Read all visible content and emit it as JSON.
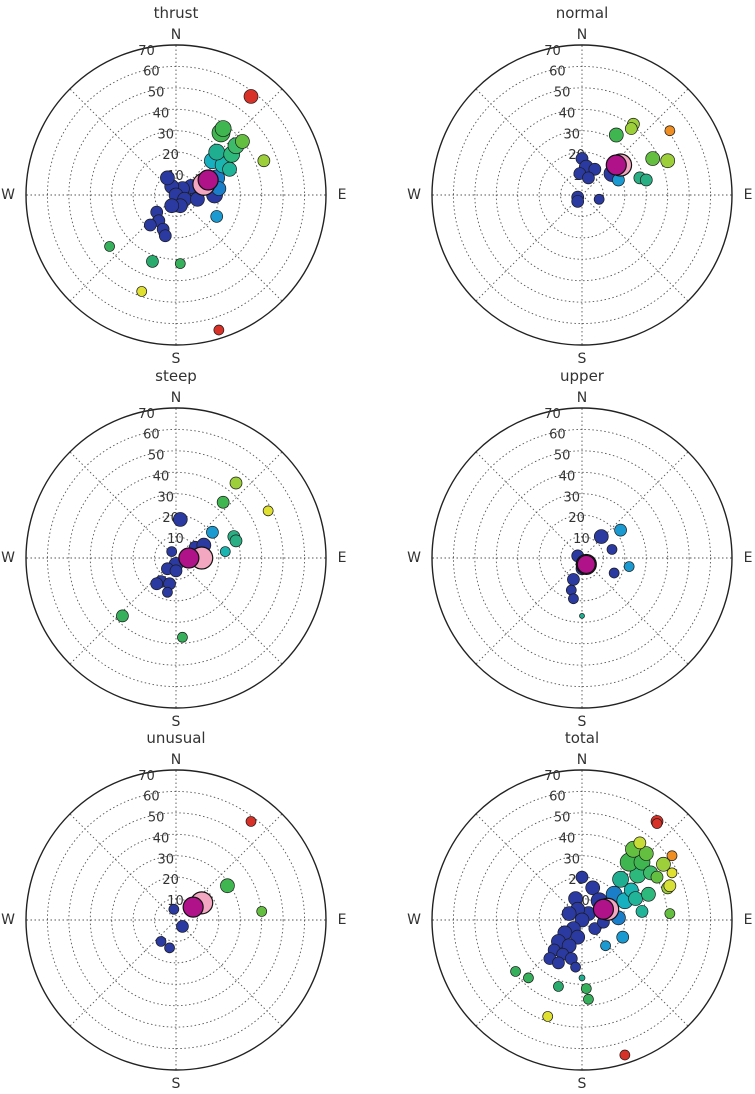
{
  "chart_data": [
    {
      "type": "scatter",
      "projection": "polar",
      "title": "thrust",
      "compass": {
        "N": "N",
        "E": "E",
        "S": "S",
        "W": "W"
      },
      "rlim": [
        0,
        70
      ],
      "rticks": [
        "10",
        "20",
        "30",
        "40",
        "50",
        "60",
        "70"
      ],
      "grid": true,
      "points": [
        {
          "x": 14,
          "y": 6,
          "c": "#2b3aa0",
          "s": 9
        },
        {
          "x": 10,
          "y": 2,
          "c": "#2b3aa0",
          "s": 8
        },
        {
          "x": 7,
          "y": 4,
          "c": "#2b3aa0",
          "s": 7
        },
        {
          "x": 3,
          "y": 3,
          "c": "#2b3aa0",
          "s": 7
        },
        {
          "x": -2,
          "y": 4,
          "c": "#2b3aa0",
          "s": 7
        },
        {
          "x": -4,
          "y": 8,
          "c": "#2b3aa0",
          "s": 7
        },
        {
          "x": 0,
          "y": 0,
          "c": "#2b3aa0",
          "s": 7
        },
        {
          "x": 4,
          "y": -2,
          "c": "#2b3aa0",
          "s": 7
        },
        {
          "x": 10,
          "y": -2,
          "c": "#2b3aa0",
          "s": 7
        },
        {
          "x": 18,
          "y": 0,
          "c": "#2b3aa0",
          "s": 8
        },
        {
          "x": 2,
          "y": -5,
          "c": "#2b3aa0",
          "s": 7
        },
        {
          "x": -2,
          "y": -5,
          "c": "#2b3aa0",
          "s": 7
        },
        {
          "x": -9,
          "y": -8,
          "c": "#2b3aa0",
          "s": 6
        },
        {
          "x": -8,
          "y": -12,
          "c": "#2b3aa0",
          "s": 6
        },
        {
          "x": -12,
          "y": -14,
          "c": "#2b3aa0",
          "s": 6
        },
        {
          "x": -6,
          "y": -16,
          "c": "#2b3aa0",
          "s": 6
        },
        {
          "x": -5,
          "y": -19,
          "c": "#2b3aa0",
          "s": 6
        },
        {
          "x": 19,
          "y": 8,
          "c": "#1a7ec8",
          "s": 8
        },
        {
          "x": 20,
          "y": 3,
          "c": "#1a7ec8",
          "s": 7
        },
        {
          "x": 19,
          "y": -10,
          "c": "#1a9ad0",
          "s": 6
        },
        {
          "x": 17,
          "y": 16,
          "c": "#17b0c0",
          "s": 8
        },
        {
          "x": 22,
          "y": 14,
          "c": "#1ab5b0",
          "s": 8
        },
        {
          "x": 25,
          "y": 12,
          "c": "#22b498",
          "s": 7
        },
        {
          "x": 19,
          "y": 20,
          "c": "#1fae90",
          "s": 8
        },
        {
          "x": 26,
          "y": 19,
          "c": "#2db87c",
          "s": 8
        },
        {
          "x": 28,
          "y": 23,
          "c": "#3ebb6a",
          "s": 8
        },
        {
          "x": 21,
          "y": 29,
          "c": "#3fb650",
          "s": 9
        },
        {
          "x": 22,
          "y": 31,
          "c": "#3fb650",
          "s": 8
        },
        {
          "x": 31,
          "y": 25,
          "c": "#64bf40",
          "s": 7
        },
        {
          "x": 41,
          "y": 16,
          "c": "#9ccf3a",
          "s": 6
        },
        {
          "x": 35,
          "y": 46,
          "c": "#d83228",
          "s": 7
        },
        {
          "x": -31,
          "y": -24,
          "c": "#37b05c",
          "s": 5
        },
        {
          "x": -11,
          "y": -31,
          "c": "#2aab6e",
          "s": 6
        },
        {
          "x": 2,
          "y": -32,
          "c": "#37b05c",
          "s": 5
        },
        {
          "x": -16,
          "y": -45,
          "c": "#e0e030",
          "s": 5
        },
        {
          "x": 20,
          "y": -63,
          "c": "#d83228",
          "s": 5
        }
      ],
      "means": [
        {
          "x": 13,
          "y": 5,
          "c": "#f4a7c0",
          "s": 11
        },
        {
          "x": 15,
          "y": 7,
          "c": "#b0128a",
          "s": 10
        }
      ]
    },
    {
      "type": "scatter",
      "projection": "polar",
      "title": "normal",
      "compass": {
        "N": "N",
        "E": "E",
        "S": "S",
        "W": "W"
      },
      "rlim": [
        0,
        70
      ],
      "rticks": [
        "10",
        "20",
        "30",
        "40",
        "50",
        "60",
        "70"
      ],
      "grid": true,
      "points": [
        {
          "x": 0,
          "y": 17,
          "c": "#2b3aa0",
          "s": 6
        },
        {
          "x": 2,
          "y": 13,
          "c": "#2b3aa0",
          "s": 7
        },
        {
          "x": 6,
          "y": 12,
          "c": "#2b3aa0",
          "s": 6
        },
        {
          "x": -1,
          "y": 10,
          "c": "#2b3aa0",
          "s": 6
        },
        {
          "x": 3,
          "y": 8,
          "c": "#2b3aa0",
          "s": 6
        },
        {
          "x": 14,
          "y": 10,
          "c": "#2b3aa0",
          "s": 8
        },
        {
          "x": 15,
          "y": 14,
          "c": "#1a9ad0",
          "s": 7
        },
        {
          "x": 17,
          "y": 7,
          "c": "#1a9ad0",
          "s": 6
        },
        {
          "x": -2,
          "y": -1,
          "c": "#2b3aa0",
          "s": 6
        },
        {
          "x": -2,
          "y": -3,
          "c": "#2b3aa0",
          "s": 6
        },
        {
          "x": 8,
          "y": -2,
          "c": "#2b3aa0",
          "s": 5
        },
        {
          "x": 27,
          "y": 8,
          "c": "#2aae84",
          "s": 6
        },
        {
          "x": 30,
          "y": 7,
          "c": "#2aae84",
          "s": 6
        },
        {
          "x": 16,
          "y": 28,
          "c": "#3fb650",
          "s": 7
        },
        {
          "x": 33,
          "y": 17,
          "c": "#64bf40",
          "s": 7
        },
        {
          "x": 40,
          "y": 16,
          "c": "#9ccf3a",
          "s": 7
        },
        {
          "x": 24,
          "y": 33,
          "c": "#9ccf3a",
          "s": 6
        },
        {
          "x": 23,
          "y": 31,
          "c": "#9ccf3a",
          "s": 6
        },
        {
          "x": 41,
          "y": 30,
          "c": "#ef8e22",
          "s": 5
        }
      ],
      "means": [
        {
          "x": 18,
          "y": 14,
          "c": "#f4a7c0",
          "s": 11
        },
        {
          "x": 16,
          "y": 14,
          "c": "#b0128a",
          "s": 10
        }
      ]
    },
    {
      "type": "scatter",
      "projection": "polar",
      "title": "steep",
      "compass": {
        "N": "N",
        "E": "E",
        "S": "S",
        "W": "W"
      },
      "rlim": [
        0,
        70
      ],
      "rticks": [
        "10",
        "20",
        "30",
        "40",
        "50",
        "60",
        "70"
      ],
      "grid": true,
      "points": [
        {
          "x": 2,
          "y": 18,
          "c": "#2b3aa0",
          "s": 7
        },
        {
          "x": -2,
          "y": 3,
          "c": "#2b3aa0",
          "s": 5
        },
        {
          "x": 9,
          "y": 5,
          "c": "#2b3aa0",
          "s": 6
        },
        {
          "x": 13,
          "y": 6,
          "c": "#2b3aa0",
          "s": 7
        },
        {
          "x": 0,
          "y": -3,
          "c": "#2b3aa0",
          "s": 7
        },
        {
          "x": -4,
          "y": -5,
          "c": "#2b3aa0",
          "s": 6
        },
        {
          "x": 0,
          "y": -6,
          "c": "#2b3aa0",
          "s": 6
        },
        {
          "x": -7,
          "y": -11,
          "c": "#2b3aa0",
          "s": 6
        },
        {
          "x": -9,
          "y": -12,
          "c": "#2b3aa0",
          "s": 6
        },
        {
          "x": -3,
          "y": -12,
          "c": "#2b3aa0",
          "s": 6
        },
        {
          "x": -4,
          "y": -16,
          "c": "#2b3aa0",
          "s": 5
        },
        {
          "x": 17,
          "y": 12,
          "c": "#1a9ad0",
          "s": 6
        },
        {
          "x": 23,
          "y": 3,
          "c": "#1ab5b0",
          "s": 5
        },
        {
          "x": 27,
          "y": 10,
          "c": "#2aae84",
          "s": 6
        },
        {
          "x": 28,
          "y": 8,
          "c": "#2aae84",
          "s": 6
        },
        {
          "x": 22,
          "y": 26,
          "c": "#3fb650",
          "s": 6
        },
        {
          "x": 28,
          "y": 35,
          "c": "#9ccf3a",
          "s": 6
        },
        {
          "x": 43,
          "y": 22,
          "c": "#e0e030",
          "s": 5
        },
        {
          "x": -25,
          "y": -27,
          "c": "#37b05c",
          "s": 6
        },
        {
          "x": 3,
          "y": -37,
          "c": "#37b05c",
          "s": 5
        }
      ],
      "means": [
        {
          "x": 12,
          "y": 0,
          "c": "#f4a7c0",
          "s": 11
        },
        {
          "x": 6,
          "y": 0,
          "c": "#b0128a",
          "s": 10
        }
      ]
    },
    {
      "type": "scatter",
      "projection": "polar",
      "title": "upper",
      "compass": {
        "N": "N",
        "E": "E",
        "S": "S",
        "W": "W"
      },
      "rlim": [
        0,
        70
      ],
      "rticks": [
        "10",
        "20",
        "30",
        "40",
        "50",
        "60",
        "70"
      ],
      "grid": true,
      "points": [
        {
          "x": 9,
          "y": 10,
          "c": "#2b3aa0",
          "s": 7
        },
        {
          "x": 14,
          "y": 4,
          "c": "#2b3aa0",
          "s": 5
        },
        {
          "x": -2,
          "y": 1,
          "c": "#2b3aa0",
          "s": 6
        },
        {
          "x": 0,
          "y": -5,
          "c": "#2b3aa0",
          "s": 6
        },
        {
          "x": -4,
          "y": -10,
          "c": "#2b3aa0",
          "s": 6
        },
        {
          "x": 15,
          "y": -7,
          "c": "#2b3aa0",
          "s": 5
        },
        {
          "x": -5,
          "y": -15,
          "c": "#2b3aa0",
          "s": 5
        },
        {
          "x": -4,
          "y": -19,
          "c": "#2b3aa0",
          "s": 5
        },
        {
          "x": 18,
          "y": 13,
          "c": "#1a9ad0",
          "s": 6
        },
        {
          "x": 22,
          "y": -4,
          "c": "#1a9ad0",
          "s": 5
        },
        {
          "x": 0,
          "y": -27,
          "c": "#1fae90",
          "s": 2.5
        }
      ],
      "means": [
        {
          "x": 2,
          "y": -3,
          "c": "#f4a7c0",
          "s": 10
        },
        {
          "x": 2,
          "y": -3,
          "c": "#b0128a",
          "s": 9
        }
      ]
    },
    {
      "type": "scatter",
      "projection": "polar",
      "title": "unusual",
      "compass": {
        "N": "N",
        "E": "E",
        "S": "S",
        "W": "W"
      },
      "rlim": [
        0,
        70
      ],
      "rticks": [
        "10",
        "20",
        "30",
        "40",
        "50",
        "60",
        "70"
      ],
      "grid": true,
      "points": [
        {
          "x": -1,
          "y": 5,
          "c": "#2b3aa0",
          "s": 5
        },
        {
          "x": 3,
          "y": -3,
          "c": "#2b3aa0",
          "s": 6
        },
        {
          "x": -7,
          "y": -10,
          "c": "#2b3aa0",
          "s": 5
        },
        {
          "x": -3,
          "y": -13,
          "c": "#2b3aa0",
          "s": 5
        },
        {
          "x": 24,
          "y": 16,
          "c": "#3fb650",
          "s": 7
        },
        {
          "x": 40,
          "y": 4,
          "c": "#64bf40",
          "s": 5
        },
        {
          "x": 35,
          "y": 46,
          "c": "#d83228",
          "s": 5
        }
      ],
      "means": [
        {
          "x": 12,
          "y": 8,
          "c": "#f4a7c0",
          "s": 11
        },
        {
          "x": 8,
          "y": 6,
          "c": "#b0128a",
          "s": 10
        }
      ]
    },
    {
      "type": "scatter",
      "projection": "polar",
      "title": "total",
      "compass": {
        "N": "N",
        "E": "E",
        "S": "S",
        "W": "W"
      },
      "rlim": [
        0,
        70
      ],
      "rticks": [
        "10",
        "20",
        "30",
        "40",
        "50",
        "60",
        "70"
      ],
      "grid": true,
      "points": [
        {
          "x": 0,
          "y": 20,
          "c": "#2b3aa0",
          "s": 6
        },
        {
          "x": 5,
          "y": 15,
          "c": "#2b3aa0",
          "s": 7
        },
        {
          "x": -3,
          "y": 10,
          "c": "#2b3aa0",
          "s": 7
        },
        {
          "x": 8,
          "y": 9,
          "c": "#2b3aa0",
          "s": 8
        },
        {
          "x": 13,
          "y": 6,
          "c": "#2b3aa0",
          "s": 8
        },
        {
          "x": 3,
          "y": 3,
          "c": "#2b3aa0",
          "s": 7
        },
        {
          "x": -2,
          "y": 5,
          "c": "#2b3aa0",
          "s": 7
        },
        {
          "x": -6,
          "y": 3,
          "c": "#2b3aa0",
          "s": 7
        },
        {
          "x": 0,
          "y": 0,
          "c": "#2b3aa0",
          "s": 7
        },
        {
          "x": -4,
          "y": -4,
          "c": "#2b3aa0",
          "s": 7
        },
        {
          "x": -8,
          "y": -6,
          "c": "#2b3aa0",
          "s": 7
        },
        {
          "x": -2,
          "y": -8,
          "c": "#2b3aa0",
          "s": 7
        },
        {
          "x": -11,
          "y": -10,
          "c": "#2b3aa0",
          "s": 7
        },
        {
          "x": -6,
          "y": -12,
          "c": "#2b3aa0",
          "s": 7
        },
        {
          "x": -13,
          "y": -14,
          "c": "#2b3aa0",
          "s": 6
        },
        {
          "x": -9,
          "y": -16,
          "c": "#2b3aa0",
          "s": 6
        },
        {
          "x": -15,
          "y": -18,
          "c": "#2b3aa0",
          "s": 6
        },
        {
          "x": -5,
          "y": -18,
          "c": "#2b3aa0",
          "s": 6
        },
        {
          "x": -11,
          "y": -20,
          "c": "#2b3aa0",
          "s": 6
        },
        {
          "x": -3,
          "y": -22,
          "c": "#2b3aa0",
          "s": 5
        },
        {
          "x": 6,
          "y": -4,
          "c": "#2b3aa0",
          "s": 6
        },
        {
          "x": 10,
          "y": -1,
          "c": "#2b3aa0",
          "s": 6
        },
        {
          "x": 17,
          "y": 1,
          "c": "#1a7ec8",
          "s": 7
        },
        {
          "x": 15,
          "y": 12,
          "c": "#1a7ec8",
          "s": 8
        },
        {
          "x": 19,
          "y": -8,
          "c": "#1a9ad0",
          "s": 6
        },
        {
          "x": 11,
          "y": -12,
          "c": "#1a9ad0",
          "s": 5
        },
        {
          "x": 20,
          "y": 9,
          "c": "#17b0c0",
          "s": 8
        },
        {
          "x": 23,
          "y": 14,
          "c": "#1ab5b0",
          "s": 7
        },
        {
          "x": 18,
          "y": 19,
          "c": "#1fae90",
          "s": 8
        },
        {
          "x": 25,
          "y": 10,
          "c": "#22b498",
          "s": 7
        },
        {
          "x": 28,
          "y": 4,
          "c": "#22b498",
          "s": 6
        },
        {
          "x": 26,
          "y": 21,
          "c": "#2db87c",
          "s": 8
        },
        {
          "x": 31,
          "y": 12,
          "c": "#2db87c",
          "s": 7
        },
        {
          "x": 22,
          "y": 27,
          "c": "#3fb650",
          "s": 9
        },
        {
          "x": 28,
          "y": 27,
          "c": "#3fb650",
          "s": 8
        },
        {
          "x": 32,
          "y": 22,
          "c": "#3ebb6a",
          "s": 7
        },
        {
          "x": 24,
          "y": 33,
          "c": "#64bf40",
          "s": 8
        },
        {
          "x": 30,
          "y": 31,
          "c": "#64bf40",
          "s": 7
        },
        {
          "x": 35,
          "y": 20,
          "c": "#64bf40",
          "s": 6
        },
        {
          "x": 38,
          "y": 26,
          "c": "#9ccf3a",
          "s": 7
        },
        {
          "x": 40,
          "y": 15,
          "c": "#9ccf3a",
          "s": 6
        },
        {
          "x": 41,
          "y": 3,
          "c": "#64bf40",
          "s": 5
        },
        {
          "x": 27,
          "y": 36,
          "c": "#c8dc38",
          "s": 6
        },
        {
          "x": 41,
          "y": 16,
          "c": "#d6e036",
          "s": 6
        },
        {
          "x": 42,
          "y": 22,
          "c": "#e0e030",
          "s": 5
        },
        {
          "x": 42,
          "y": 30,
          "c": "#ef8e22",
          "s": 5
        },
        {
          "x": 35,
          "y": 46,
          "c": "#d83228",
          "s": 6
        },
        {
          "x": 35,
          "y": 45,
          "c": "#d83228",
          "s": 5
        },
        {
          "x": -31,
          "y": -24,
          "c": "#37b05c",
          "s": 5
        },
        {
          "x": -25,
          "y": -27,
          "c": "#37b05c",
          "s": 5
        },
        {
          "x": -11,
          "y": -31,
          "c": "#2aab6e",
          "s": 5
        },
        {
          "x": 2,
          "y": -32,
          "c": "#37b05c",
          "s": 5
        },
        {
          "x": 3,
          "y": -37,
          "c": "#37b05c",
          "s": 5
        },
        {
          "x": 0,
          "y": -27,
          "c": "#1fae90",
          "s": 3
        },
        {
          "x": -16,
          "y": -45,
          "c": "#e0e030",
          "s": 5
        },
        {
          "x": 20,
          "y": -63,
          "c": "#d83228",
          "s": 5
        }
      ],
      "means": [
        {
          "x": 12,
          "y": 5,
          "c": "#f4a7c0",
          "s": 11
        },
        {
          "x": 10,
          "y": 5,
          "c": "#b0128a",
          "s": 10
        }
      ]
    }
  ]
}
